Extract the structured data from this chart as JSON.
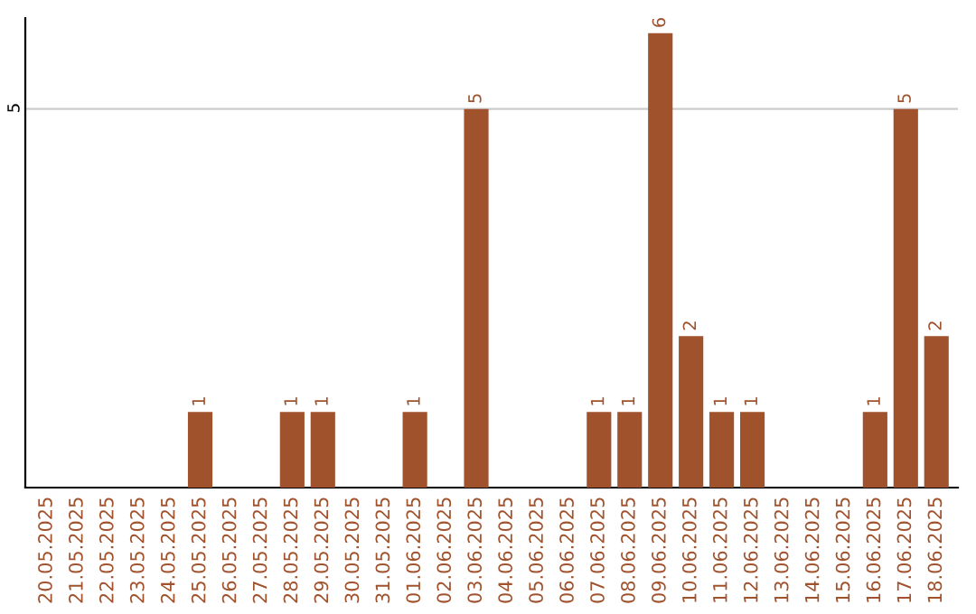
{
  "chart_data": {
    "type": "bar",
    "categories": [
      "20.05.2025",
      "21.05.2025",
      "22.05.2025",
      "23.05.2025",
      "24.05.2025",
      "25.05.2025",
      "26.05.2025",
      "27.05.2025",
      "28.05.2025",
      "29.05.2025",
      "30.05.2025",
      "31.05.2025",
      "01.06.2025",
      "02.06.2025",
      "03.06.2025",
      "04.06.2025",
      "05.06.2025",
      "06.06.2025",
      "07.06.2025",
      "08.06.2025",
      "09.06.2025",
      "10.06.2025",
      "11.06.2025",
      "12.06.2025",
      "13.06.2025",
      "14.06.2025",
      "15.06.2025",
      "16.06.2025",
      "17.06.2025",
      "18.06.2025"
    ],
    "values": [
      0,
      0,
      0,
      0,
      0,
      1,
      0,
      0,
      1,
      1,
      0,
      0,
      1,
      0,
      5,
      0,
      0,
      0,
      1,
      1,
      6,
      2,
      1,
      1,
      0,
      0,
      0,
      1,
      5,
      2
    ],
    "value_labels": [
      null,
      null,
      null,
      null,
      null,
      "1",
      null,
      null,
      "1",
      "1",
      null,
      null,
      "1",
      null,
      "5",
      null,
      null,
      null,
      "1",
      "1",
      "6",
      "2",
      "1",
      "1",
      null,
      null,
      null,
      "1",
      "5",
      "2"
    ],
    "color": "#a0522d",
    "ylim": [
      0,
      6.2
    ],
    "yticks": [
      5
    ],
    "grid": "y",
    "legend": false
  }
}
